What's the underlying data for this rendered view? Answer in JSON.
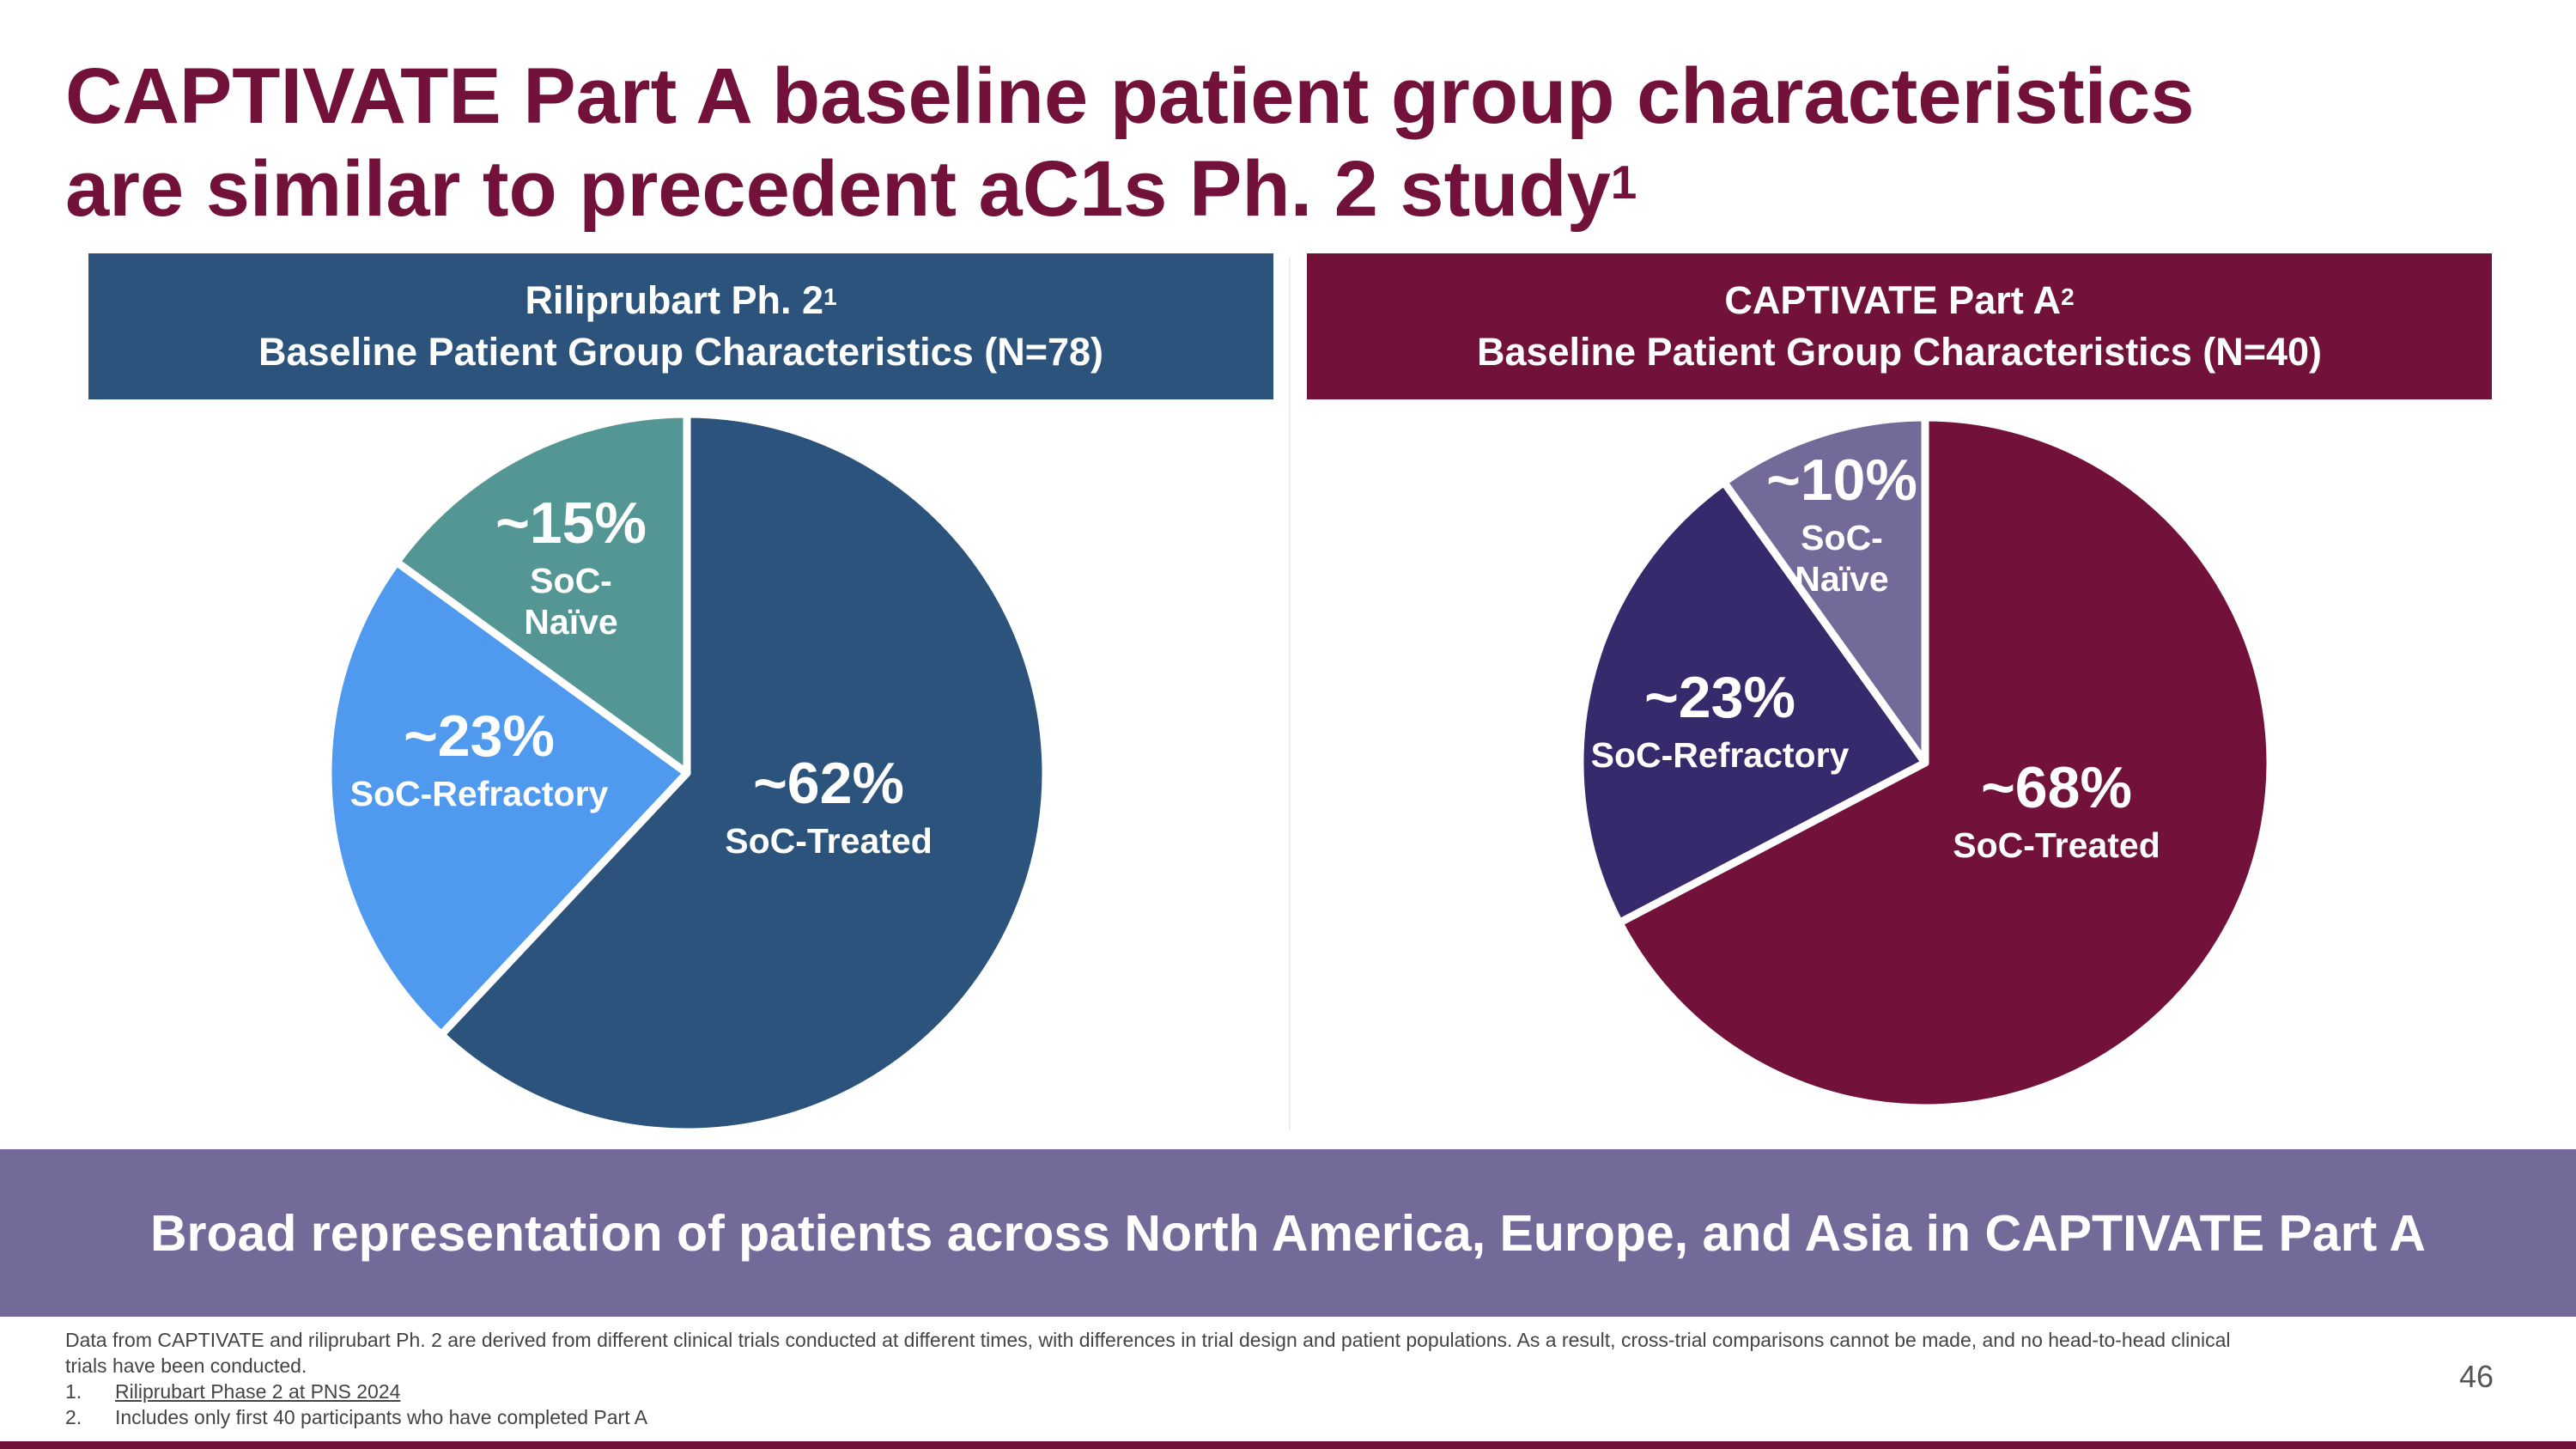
{
  "title_line1": "CAPTIVATE Part A baseline patient group characteristics",
  "title_line2": "are similar to precedent aC1s Ph. 2 study",
  "title_sup": "1",
  "left_panel": {
    "header_line1": "Riliprubart Ph. 2",
    "header_sup": "1",
    "header_line2": "Baseline Patient Group Characteristics (N=78)",
    "color": "#2b537b"
  },
  "right_panel": {
    "header_line1": "CAPTIVATE Part A",
    "header_sup": "2",
    "header_line2": "Baseline Patient Group Characteristics (N=40)",
    "color": "#721139"
  },
  "chart_data": [
    {
      "type": "pie",
      "title": "Riliprubart Ph. 2 Baseline Patient Group Characteristics (N=78)",
      "slices": [
        {
          "label": "SoC-Treated",
          "value": 62,
          "display": "~62%",
          "color": "#2b537b"
        },
        {
          "label": "SoC-Refractory",
          "value": 23,
          "display": "~23%",
          "color": "#4f99ee"
        },
        {
          "label": "SoC-Naïve",
          "value": 15,
          "display": "~15%",
          "color": "#549693",
          "label_lines": [
            "SoC-",
            "Naïve"
          ]
        }
      ]
    },
    {
      "type": "pie",
      "title": "CAPTIVATE Part A Baseline Patient Group Characteristics (N=40)",
      "slices": [
        {
          "label": "SoC-Treated",
          "value": 68,
          "display": "~68%",
          "color": "#721139"
        },
        {
          "label": "SoC-Refractory",
          "value": 23,
          "display": "~23%",
          "color": "#372a6c"
        },
        {
          "label": "SoC-Naïve",
          "value": 10,
          "display": "~10%",
          "color": "#736a99",
          "label_lines": [
            "SoC-",
            "Naïve"
          ]
        }
      ]
    }
  ],
  "banner": "Broad representation of patients across North America, Europe, and Asia in CAPTIVATE Part A",
  "footnotes": {
    "disclaimer": "Data from CAPTIVATE and riliprubart Ph. 2 are derived from different clinical trials conducted at different times, with differences in trial design and patient populations. As a result, cross-trial comparisons cannot be made, and no head-to-head clinical trials have been conducted.",
    "items": [
      {
        "num": "1.",
        "text": "Riliprubart Phase 2 at PNS 2024"
      },
      {
        "num": "2.",
        "text": "Includes only first 40 participants who have completed Part A"
      }
    ]
  },
  "page_number": "46"
}
